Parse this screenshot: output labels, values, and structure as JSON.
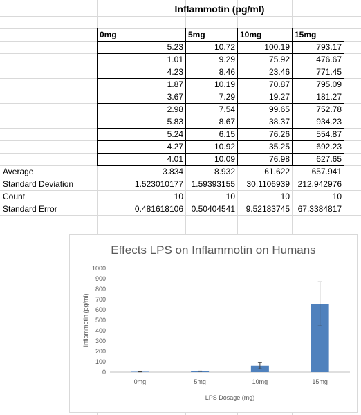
{
  "sheet": {
    "title": "Inflammotin (pg/ml)",
    "columns": [
      "0mg",
      "5mg",
      "10mg",
      "15mg"
    ],
    "rows": [
      [
        "5.23",
        "10.72",
        "100.19",
        "793.17"
      ],
      [
        "1.01",
        "9.29",
        "75.92",
        "476.67"
      ],
      [
        "4.23",
        "8.46",
        "23.46",
        "771.45"
      ],
      [
        "1.87",
        "10.19",
        "70.87",
        "795.09"
      ],
      [
        "3.67",
        "7.29",
        "19.27",
        "181.27"
      ],
      [
        "2.98",
        "7.54",
        "99.65",
        "752.78"
      ],
      [
        "5.83",
        "8.67",
        "38.37",
        "934.23"
      ],
      [
        "5.24",
        "6.15",
        "76.26",
        "554.87"
      ],
      [
        "4.27",
        "10.92",
        "35.25",
        "692.23"
      ],
      [
        "4.01",
        "10.09",
        "76.98",
        "627.65"
      ]
    ],
    "stats": [
      {
        "label": "Average",
        "values": [
          "3.834",
          "8.932",
          "61.622",
          "657.941"
        ]
      },
      {
        "label": "Standard Deviation",
        "values": [
          "1.523010177",
          "1.59393155",
          "30.1106939",
          "212.942976"
        ]
      },
      {
        "label": "Count",
        "values": [
          "10",
          "10",
          "10",
          "10"
        ]
      },
      {
        "label": "Standard Error",
        "values": [
          "0.481618106",
          "0.50404541",
          "9.52183745",
          "67.3384817"
        ]
      }
    ]
  },
  "chart_data": {
    "type": "bar",
    "title": "Effects LPS on Inflammotin on Humans",
    "xlabel": "LPS Dosage (mg)",
    "ylabel": "Inflammotin (pg/ml)",
    "categories": [
      "0mg",
      "5mg",
      "10mg",
      "15mg"
    ],
    "values": [
      3.834,
      8.932,
      61.622,
      657.941
    ],
    "error_bars": [
      1.523010177,
      1.59393155,
      30.1106939,
      212.942976
    ],
    "ylim": [
      0,
      1000
    ],
    "yticks": [
      0,
      100,
      200,
      300,
      400,
      500,
      600,
      700,
      800,
      900,
      1000
    ],
    "bar_color": "#4f81bd",
    "grid": false,
    "legend": false
  }
}
